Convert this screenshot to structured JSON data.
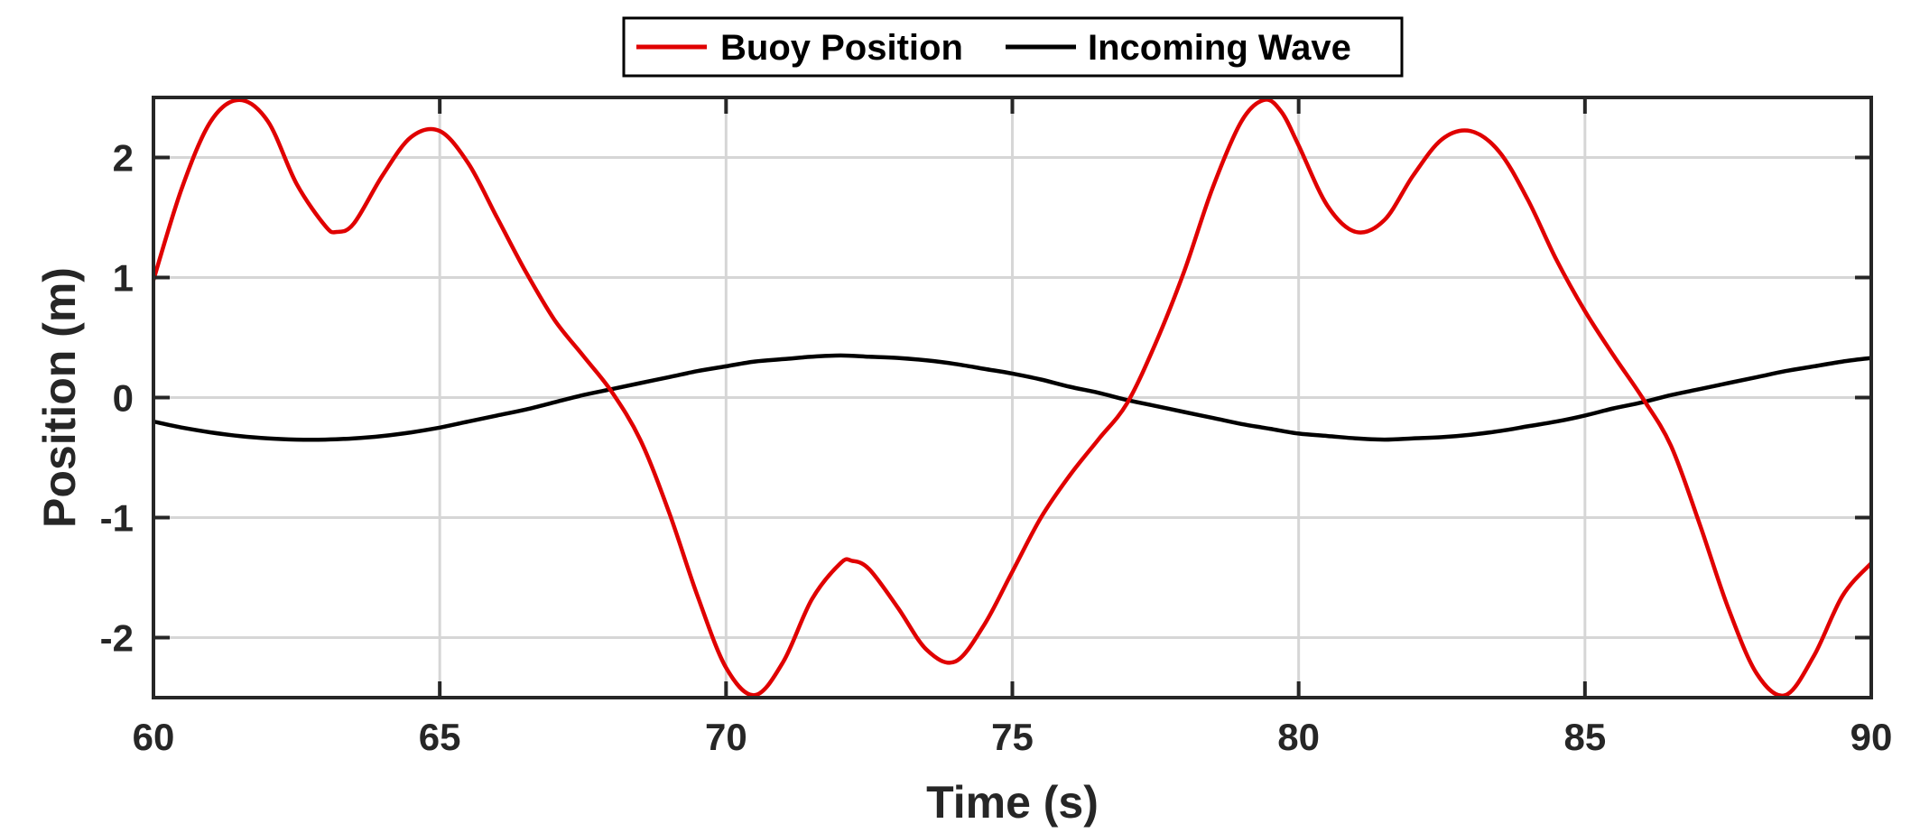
{
  "chart_data": {
    "type": "line",
    "xlabel": "Time (s)",
    "ylabel": "Position (m)",
    "xlim": [
      60,
      90
    ],
    "ylim": [
      -2.5,
      2.5
    ],
    "xticks": [
      60,
      65,
      70,
      75,
      80,
      85,
      90
    ],
    "yticks": [
      -2,
      -1,
      0,
      1,
      2
    ],
    "grid": true,
    "legend": {
      "placement": "top-center-outside",
      "orientation": "horizontal"
    },
    "series": [
      {
        "name": "Buoy Position",
        "color": "#e00000",
        "x": [
          60,
          60.5,
          61,
          61.5,
          62,
          62.5,
          63,
          63.2,
          63.5,
          64,
          64.5,
          65,
          65.5,
          66,
          66.5,
          67,
          67.5,
          68,
          68.5,
          69,
          69.5,
          70,
          70.5,
          71,
          71.5,
          72,
          72.2,
          72.5,
          73,
          73.5,
          74,
          74.5,
          75,
          75.5,
          76,
          76.5,
          77,
          77.5,
          78,
          78.5,
          79,
          79.4,
          79.7,
          80,
          80.5,
          81,
          81.5,
          82,
          82.5,
          83,
          83.5,
          84,
          84.5,
          85,
          85.5,
          86,
          86.5,
          87,
          87.5,
          88,
          88.5,
          89,
          89.5,
          90
        ],
        "y": [
          0.98,
          1.75,
          2.3,
          2.48,
          2.3,
          1.78,
          1.43,
          1.38,
          1.45,
          1.85,
          2.17,
          2.22,
          1.95,
          1.5,
          1.05,
          0.65,
          0.35,
          0.05,
          -0.35,
          -0.95,
          -1.65,
          -2.25,
          -2.48,
          -2.2,
          -1.68,
          -1.38,
          -1.36,
          -1.43,
          -1.75,
          -2.1,
          -2.2,
          -1.9,
          -1.45,
          -1.0,
          -0.65,
          -0.35,
          -0.05,
          0.45,
          1.05,
          1.75,
          2.3,
          2.48,
          2.38,
          2.1,
          1.6,
          1.38,
          1.48,
          1.85,
          2.15,
          2.22,
          2.05,
          1.65,
          1.15,
          0.72,
          0.35,
          0.0,
          -0.4,
          -1.05,
          -1.75,
          -2.3,
          -2.48,
          -2.15,
          -1.65,
          -1.38
        ]
      },
      {
        "name": "Incoming Wave",
        "color": "#000000",
        "x": [
          60,
          60.5,
          61,
          61.5,
          62,
          62.5,
          63,
          63.5,
          64,
          64.5,
          65,
          65.5,
          66,
          66.5,
          67,
          67.5,
          68,
          68.5,
          69,
          69.5,
          70,
          70.5,
          71,
          71.5,
          72,
          72.5,
          73,
          73.5,
          74,
          74.5,
          75,
          75.5,
          76,
          76.5,
          77,
          77.5,
          78,
          78.5,
          79,
          79.5,
          80,
          80.5,
          81,
          81.5,
          82,
          82.5,
          83,
          83.5,
          84,
          84.5,
          85,
          85.5,
          86,
          86.5,
          87,
          87.5,
          88,
          88.5,
          89,
          89.5,
          90
        ],
        "y": [
          -0.2,
          -0.25,
          -0.29,
          -0.32,
          -0.34,
          -0.35,
          -0.35,
          -0.34,
          -0.32,
          -0.29,
          -0.25,
          -0.2,
          -0.15,
          -0.1,
          -0.04,
          0.02,
          0.07,
          0.12,
          0.17,
          0.22,
          0.26,
          0.3,
          0.32,
          0.34,
          0.35,
          0.34,
          0.33,
          0.31,
          0.28,
          0.24,
          0.2,
          0.15,
          0.09,
          0.04,
          -0.02,
          -0.07,
          -0.12,
          -0.17,
          -0.22,
          -0.26,
          -0.3,
          -0.32,
          -0.34,
          -0.35,
          -0.34,
          -0.33,
          -0.31,
          -0.28,
          -0.24,
          -0.2,
          -0.15,
          -0.09,
          -0.04,
          0.02,
          0.07,
          0.12,
          0.17,
          0.22,
          0.26,
          0.3,
          0.33
        ]
      }
    ]
  }
}
